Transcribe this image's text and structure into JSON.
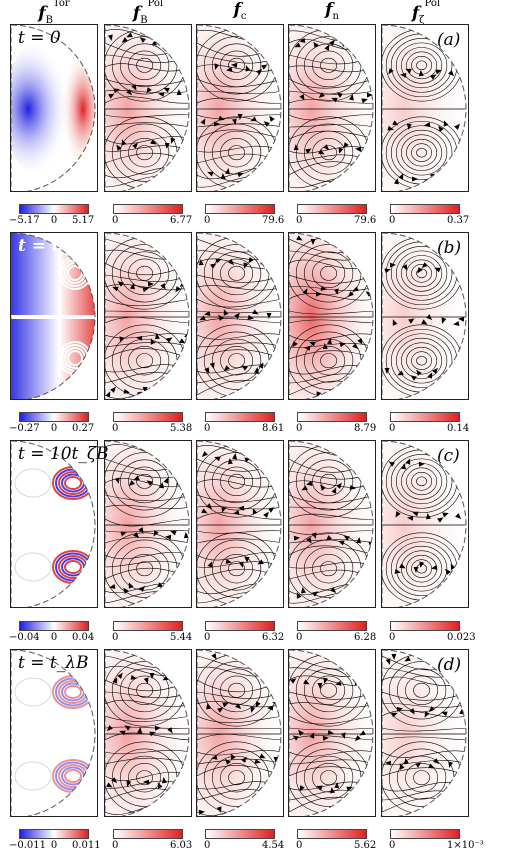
{
  "headers": {
    "col1": {
      "sym": "f",
      "sub": "B",
      "sup": "Tor"
    },
    "col2": {
      "sym": "f",
      "sub": "B",
      "sup": "Pol"
    },
    "col3": {
      "sym": "f",
      "sub": "c",
      "sup": ""
    },
    "col4": {
      "sym": "f",
      "sub": "n",
      "sup": ""
    },
    "col5": {
      "sym": "f",
      "sub": "ζ",
      "sup": "Pol"
    }
  },
  "rows": [
    {
      "time": "t = 0",
      "tag": "(a)",
      "cb": [
        {
          "min": "−5.17",
          "mid": "0",
          "max": "5.17"
        },
        {
          "min": "0",
          "max": "6.77"
        },
        {
          "min": "0",
          "max": "79.6"
        },
        {
          "min": "0",
          "max": "79.6"
        },
        {
          "min": "0",
          "max": "0.37"
        }
      ]
    },
    {
      "time": "t = t_ζB",
      "tag": "(b)",
      "cb": [
        {
          "min": "−0.27",
          "mid": "0",
          "max": "0.27"
        },
        {
          "min": "0",
          "max": "5.38"
        },
        {
          "min": "0",
          "max": "8.61"
        },
        {
          "min": "0",
          "max": "8.79"
        },
        {
          "min": "0",
          "max": "0.14"
        }
      ]
    },
    {
      "time": "t = 10t_ζB",
      "tag": "(c)",
      "cb": [
        {
          "min": "−0.04",
          "mid": "0",
          "max": "0.04"
        },
        {
          "min": "0",
          "max": "5.44"
        },
        {
          "min": "0",
          "max": "6.32"
        },
        {
          "min": "0",
          "max": "6.28"
        },
        {
          "min": "0",
          "max": "0.023"
        }
      ]
    },
    {
      "time": "t = t_λB",
      "tag": "(d)",
      "cb": [
        {
          "min": "−0.011",
          "mid": "0",
          "max": "0.011"
        },
        {
          "min": "0",
          "max": "6.03"
        },
        {
          "min": "0",
          "max": "4.54"
        },
        {
          "min": "0",
          "max": "5.62"
        },
        {
          "min": "0",
          "max": "1×10⁻³"
        }
      ]
    }
  ],
  "colors": {
    "blue": "#2020e0",
    "red": "#e02020",
    "stream": "#000000"
  }
}
